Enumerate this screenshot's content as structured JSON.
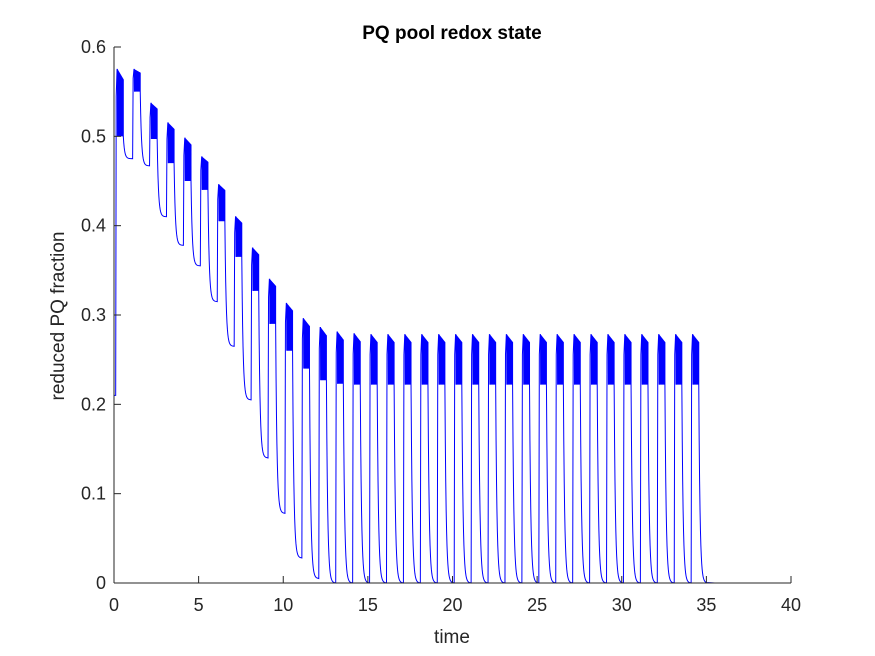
{
  "chart_data": {
    "type": "line",
    "title": "PQ pool redox state",
    "xlabel": "time",
    "ylabel": "reduced PQ fraction",
    "xlim": [
      0,
      40
    ],
    "ylim": [
      0,
      0.6
    ],
    "xticks": [
      0,
      5,
      10,
      15,
      20,
      25,
      30,
      35,
      40
    ],
    "yticks": [
      0,
      0.1,
      0.2,
      0.3,
      0.4,
      0.5,
      0.6
    ],
    "xtick_labels": [
      "0",
      "5",
      "10",
      "15",
      "20",
      "25",
      "30",
      "35",
      "40"
    ],
    "ytick_labels": [
      "0",
      "0.1",
      "0.2",
      "0.3",
      "0.4",
      "0.5",
      "0.6"
    ],
    "grid": false,
    "line_color": "#0000ff",
    "pulses": [
      {
        "on": 0.1,
        "off": 0.55,
        "peak": 0.575,
        "low": 0.5,
        "decay": 0.475
      },
      {
        "on": 1.1,
        "off": 1.55,
        "peak": 0.575,
        "low": 0.55,
        "decay": 0.467
      },
      {
        "on": 2.1,
        "off": 2.55,
        "peak": 0.537,
        "low": 0.497,
        "decay": 0.41
      },
      {
        "on": 3.1,
        "off": 3.55,
        "peak": 0.515,
        "low": 0.47,
        "decay": 0.378
      },
      {
        "on": 4.1,
        "off": 4.55,
        "peak": 0.498,
        "low": 0.45,
        "decay": 0.355
      },
      {
        "on": 5.1,
        "off": 5.55,
        "peak": 0.477,
        "low": 0.44,
        "decay": 0.315
      },
      {
        "on": 6.1,
        "off": 6.55,
        "peak": 0.446,
        "low": 0.405,
        "decay": 0.265
      },
      {
        "on": 7.1,
        "off": 7.55,
        "peak": 0.41,
        "low": 0.365,
        "decay": 0.205
      },
      {
        "on": 8.1,
        "off": 8.55,
        "peak": 0.375,
        "low": 0.327,
        "decay": 0.14
      },
      {
        "on": 9.1,
        "off": 9.55,
        "peak": 0.34,
        "low": 0.29,
        "decay": 0.078
      },
      {
        "on": 10.1,
        "off": 10.55,
        "peak": 0.313,
        "low": 0.26,
        "decay": 0.028
      },
      {
        "on": 11.1,
        "off": 11.55,
        "peak": 0.296,
        "low": 0.24,
        "decay": 0.005
      },
      {
        "on": 12.1,
        "off": 12.55,
        "peak": 0.286,
        "low": 0.227,
        "decay": 0.0
      },
      {
        "on": 13.1,
        "off": 13.55,
        "peak": 0.281,
        "low": 0.223,
        "decay": 0.0
      },
      {
        "on": 14.1,
        "off": 14.55,
        "peak": 0.279,
        "low": 0.222,
        "decay": 0.0
      },
      {
        "on": 15.1,
        "off": 15.55,
        "peak": 0.278,
        "low": 0.222,
        "decay": 0.0
      },
      {
        "on": 16.1,
        "off": 16.55,
        "peak": 0.278,
        "low": 0.222,
        "decay": 0.0
      },
      {
        "on": 17.1,
        "off": 17.55,
        "peak": 0.278,
        "low": 0.222,
        "decay": 0.0
      },
      {
        "on": 18.1,
        "off": 18.55,
        "peak": 0.278,
        "low": 0.222,
        "decay": 0.0
      },
      {
        "on": 19.1,
        "off": 19.55,
        "peak": 0.278,
        "low": 0.222,
        "decay": 0.0
      },
      {
        "on": 20.1,
        "off": 20.55,
        "peak": 0.278,
        "low": 0.222,
        "decay": 0.0
      },
      {
        "on": 21.1,
        "off": 21.55,
        "peak": 0.278,
        "low": 0.222,
        "decay": 0.0
      },
      {
        "on": 22.1,
        "off": 22.55,
        "peak": 0.278,
        "low": 0.222,
        "decay": 0.0
      },
      {
        "on": 23.1,
        "off": 23.55,
        "peak": 0.278,
        "low": 0.222,
        "decay": 0.0
      },
      {
        "on": 24.1,
        "off": 24.55,
        "peak": 0.278,
        "low": 0.222,
        "decay": 0.0
      },
      {
        "on": 25.1,
        "off": 25.55,
        "peak": 0.278,
        "low": 0.222,
        "decay": 0.0
      },
      {
        "on": 26.1,
        "off": 26.55,
        "peak": 0.278,
        "low": 0.222,
        "decay": 0.0
      },
      {
        "on": 27.1,
        "off": 27.55,
        "peak": 0.278,
        "low": 0.222,
        "decay": 0.0
      },
      {
        "on": 28.1,
        "off": 28.55,
        "peak": 0.278,
        "low": 0.222,
        "decay": 0.0
      },
      {
        "on": 29.1,
        "off": 29.55,
        "peak": 0.278,
        "low": 0.222,
        "decay": 0.0
      },
      {
        "on": 30.1,
        "off": 30.55,
        "peak": 0.278,
        "low": 0.222,
        "decay": 0.0
      },
      {
        "on": 31.1,
        "off": 31.55,
        "peak": 0.278,
        "low": 0.222,
        "decay": 0.0
      },
      {
        "on": 32.1,
        "off": 32.55,
        "peak": 0.278,
        "low": 0.222,
        "decay": 0.0
      },
      {
        "on": 33.1,
        "off": 33.55,
        "peak": 0.278,
        "low": 0.222,
        "decay": 0.0
      },
      {
        "on": 34.1,
        "off": 34.55,
        "peak": 0.278,
        "low": 0.222,
        "decay": 0.0
      }
    ],
    "series_end_x": 35.5
  }
}
